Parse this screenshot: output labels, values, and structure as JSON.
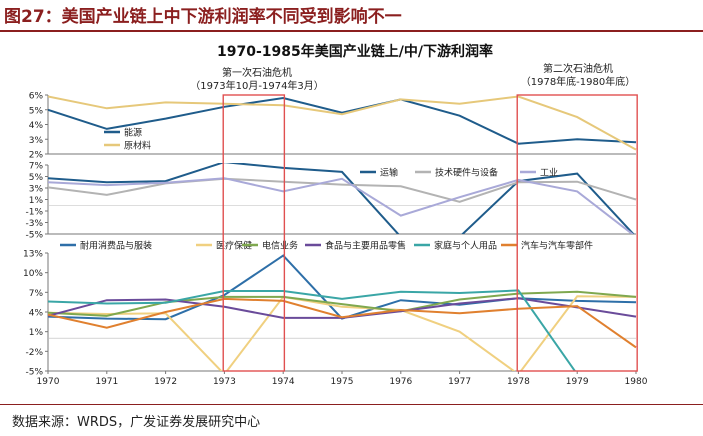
{
  "figure": {
    "title": "图27：美国产业链上中下游利润率不同受到影响不一",
    "source": "数据来源：WRDS，广发证券发展研究中心"
  },
  "chart_data": {
    "type": "line",
    "title": "1970-1985年美国产业链上/中/下游利润率",
    "x": [
      "1970",
      "1971",
      "1972",
      "1973",
      "1974",
      "1975",
      "1976",
      "1977",
      "1978",
      "1979",
      "1980"
    ],
    "annotations": [
      {
        "label": "第一次石油危机",
        "sublabel": "（1973年10月-1974年3月）",
        "x_from": "1973",
        "x_to": "1974"
      },
      {
        "label": "第二次石油危机",
        "sublabel": "（1978年底-1980年底）",
        "x_from": "1978",
        "x_to": "1980"
      }
    ],
    "colors": {
      "energy": "#1f5c8b",
      "raw": "#e6c87a",
      "transport": "#1f5c8b",
      "tech": "#b3b3b3",
      "industry": "#a9a9d8",
      "durable": "#2e6fa8",
      "medical": "#f0d080",
      "utility": "#7fa84f",
      "food": "#6a4b9a",
      "household": "#3aa6a6",
      "auto": "#e0802f",
      "highlight": "#e05050"
    },
    "panels": [
      {
        "id": "upstream",
        "ylim": [
          2,
          6
        ],
        "ticks": [
          "2%",
          "3%",
          "4%",
          "5%",
          "6%"
        ],
        "tick_values": [
          2,
          3,
          4,
          5,
          6
        ],
        "legend": "left",
        "series": [
          {
            "name": "能源",
            "color_key": "energy",
            "values": [
              5.0,
              3.7,
              4.4,
              5.2,
              5.8,
              4.8,
              5.7,
              4.6,
              2.7,
              3.0,
              2.8
            ]
          },
          {
            "name": "原材料",
            "color_key": "raw",
            "values": [
              5.9,
              5.1,
              5.5,
              5.4,
              5.3,
              4.7,
              5.7,
              5.4,
              5.9,
              4.5,
              2.3
            ]
          }
        ]
      },
      {
        "id": "midstream",
        "ylim": [
          -5,
          7
        ],
        "ticks": [
          "-5%",
          "-3%",
          "-1%",
          "1%",
          "3%",
          "5%",
          "7%"
        ],
        "tick_values": [
          -5,
          -3,
          -1,
          1,
          3,
          5,
          7
        ],
        "legend": "top-right",
        "series": [
          {
            "name": "运输",
            "color_key": "transport",
            "values": [
              4.7,
              4.0,
              4.2,
              7.5,
              6.5,
              5.8,
              -5.5,
              -5.5,
              4.2,
              5.5,
              -5.5
            ]
          },
          {
            "name": "技术硬件与设备",
            "color_key": "tech",
            "values": [
              3.1,
              1.8,
              3.8,
              4.6,
              4.1,
              3.6,
              3.3,
              0.6,
              4.0,
              4.1,
              1.0
            ]
          },
          {
            "name": "工业",
            "color_key": "industry",
            "values": [
              4.0,
              3.5,
              3.9,
              4.7,
              2.4,
              4.6,
              -1.8,
              1.4,
              4.4,
              2.4,
              -5.5
            ]
          }
        ]
      },
      {
        "id": "downstream",
        "ylim": [
          -5,
          13
        ],
        "ticks": [
          "-5%",
          "-2%",
          "1%",
          "4%",
          "7%",
          "10%",
          "13%"
        ],
        "tick_values": [
          -5,
          -2,
          1,
          4,
          7,
          10,
          13
        ],
        "legend": "top",
        "series": [
          {
            "name": "耐用消费品与服装",
            "color_key": "durable",
            "values": [
              3.3,
              3.0,
              2.9,
              6.6,
              12.6,
              3.0,
              5.8,
              5.1,
              6.1,
              5.7,
              5.5
            ]
          },
          {
            "name": "医疗保健",
            "color_key": "medical",
            "values": [
              3.9,
              3.7,
              3.8,
              -5.5,
              6.3,
              4.8,
              4.3,
              1.0,
              -5.5,
              6.4,
              6.3
            ]
          },
          {
            "name": "电信业务",
            "color_key": "utility",
            "values": [
              3.9,
              3.4,
              5.5,
              6.3,
              6.3,
              5.2,
              4.1,
              5.9,
              6.8,
              7.1,
              6.3
            ]
          },
          {
            "name": "食品与主要用品零售",
            "color_key": "food",
            "values": [
              3.4,
              5.8,
              5.9,
              4.8,
              3.1,
              3.1,
              4.1,
              5.3,
              6.1,
              4.7,
              3.3
            ]
          },
          {
            "name": "家庭与个人用品",
            "color_key": "household",
            "values": [
              5.6,
              5.3,
              5.4,
              7.2,
              7.2,
              6.0,
              7.1,
              6.9,
              7.3,
              -5.5,
              -5.5
            ]
          },
          {
            "name": "汽车与汽车零部件",
            "color_key": "auto",
            "values": [
              3.6,
              1.6,
              4.0,
              6.0,
              5.7,
              3.2,
              4.3,
              3.8,
              4.5,
              4.9,
              -1.4
            ]
          }
        ]
      }
    ]
  }
}
